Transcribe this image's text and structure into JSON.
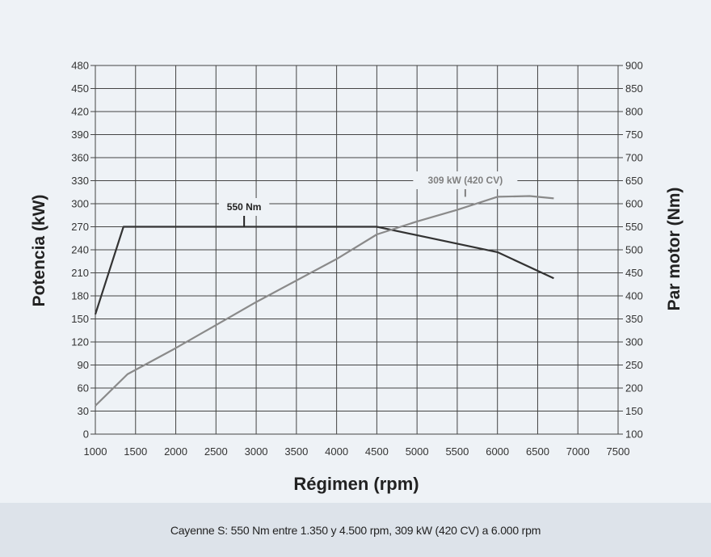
{
  "chart_data": {
    "type": "line",
    "title": "",
    "xlabel": "Régimen (rpm)",
    "ylabel_left": "Potencia (kW)",
    "ylabel_right": "Par motor (Nm)",
    "x_ticks": [
      1000,
      1500,
      2000,
      2500,
      3000,
      3500,
      4000,
      4500,
      5000,
      5500,
      6000,
      6500,
      7000,
      7500
    ],
    "y_left_ticks": [
      0,
      30,
      60,
      90,
      120,
      150,
      180,
      210,
      240,
      270,
      300,
      330,
      360,
      390,
      420,
      450,
      480
    ],
    "y_right_ticks": [
      100,
      150,
      200,
      250,
      300,
      350,
      400,
      450,
      500,
      550,
      600,
      650,
      700,
      750,
      800,
      850,
      900
    ],
    "xlim": [
      1000,
      7500
    ],
    "ylim_left": [
      0,
      480
    ],
    "ylim_right": [
      100,
      900
    ],
    "grid": true,
    "series": [
      {
        "axis": "right",
        "color": "#333333",
        "points": [
          [
            1000,
            360
          ],
          [
            1350,
            550
          ],
          [
            4500,
            550
          ],
          [
            6000,
            495
          ],
          [
            6700,
            438
          ]
        ]
      },
      {
        "axis": "left",
        "color": "#8a8a8a",
        "points": [
          [
            1000,
            37
          ],
          [
            1400,
            78
          ],
          [
            2000,
            112
          ],
          [
            3000,
            172
          ],
          [
            4000,
            228
          ],
          [
            4500,
            260
          ],
          [
            5000,
            277
          ],
          [
            5500,
            292
          ],
          [
            6000,
            309
          ],
          [
            6400,
            310
          ],
          [
            6700,
            307
          ]
        ]
      }
    ],
    "annotations": [
      {
        "text": "550 Nm",
        "x": 2850,
        "y": 550,
        "axis": "right",
        "color": "#222222"
      },
      {
        "text": "309 kW (420 CV)",
        "x": 5600,
        "y": 309,
        "axis": "left",
        "color": "#808080"
      }
    ]
  },
  "caption": "Cayenne S: 550 Nm entre 1.350 y 4.500 rpm, 309 kW (420 CV) a 6.000 rpm"
}
